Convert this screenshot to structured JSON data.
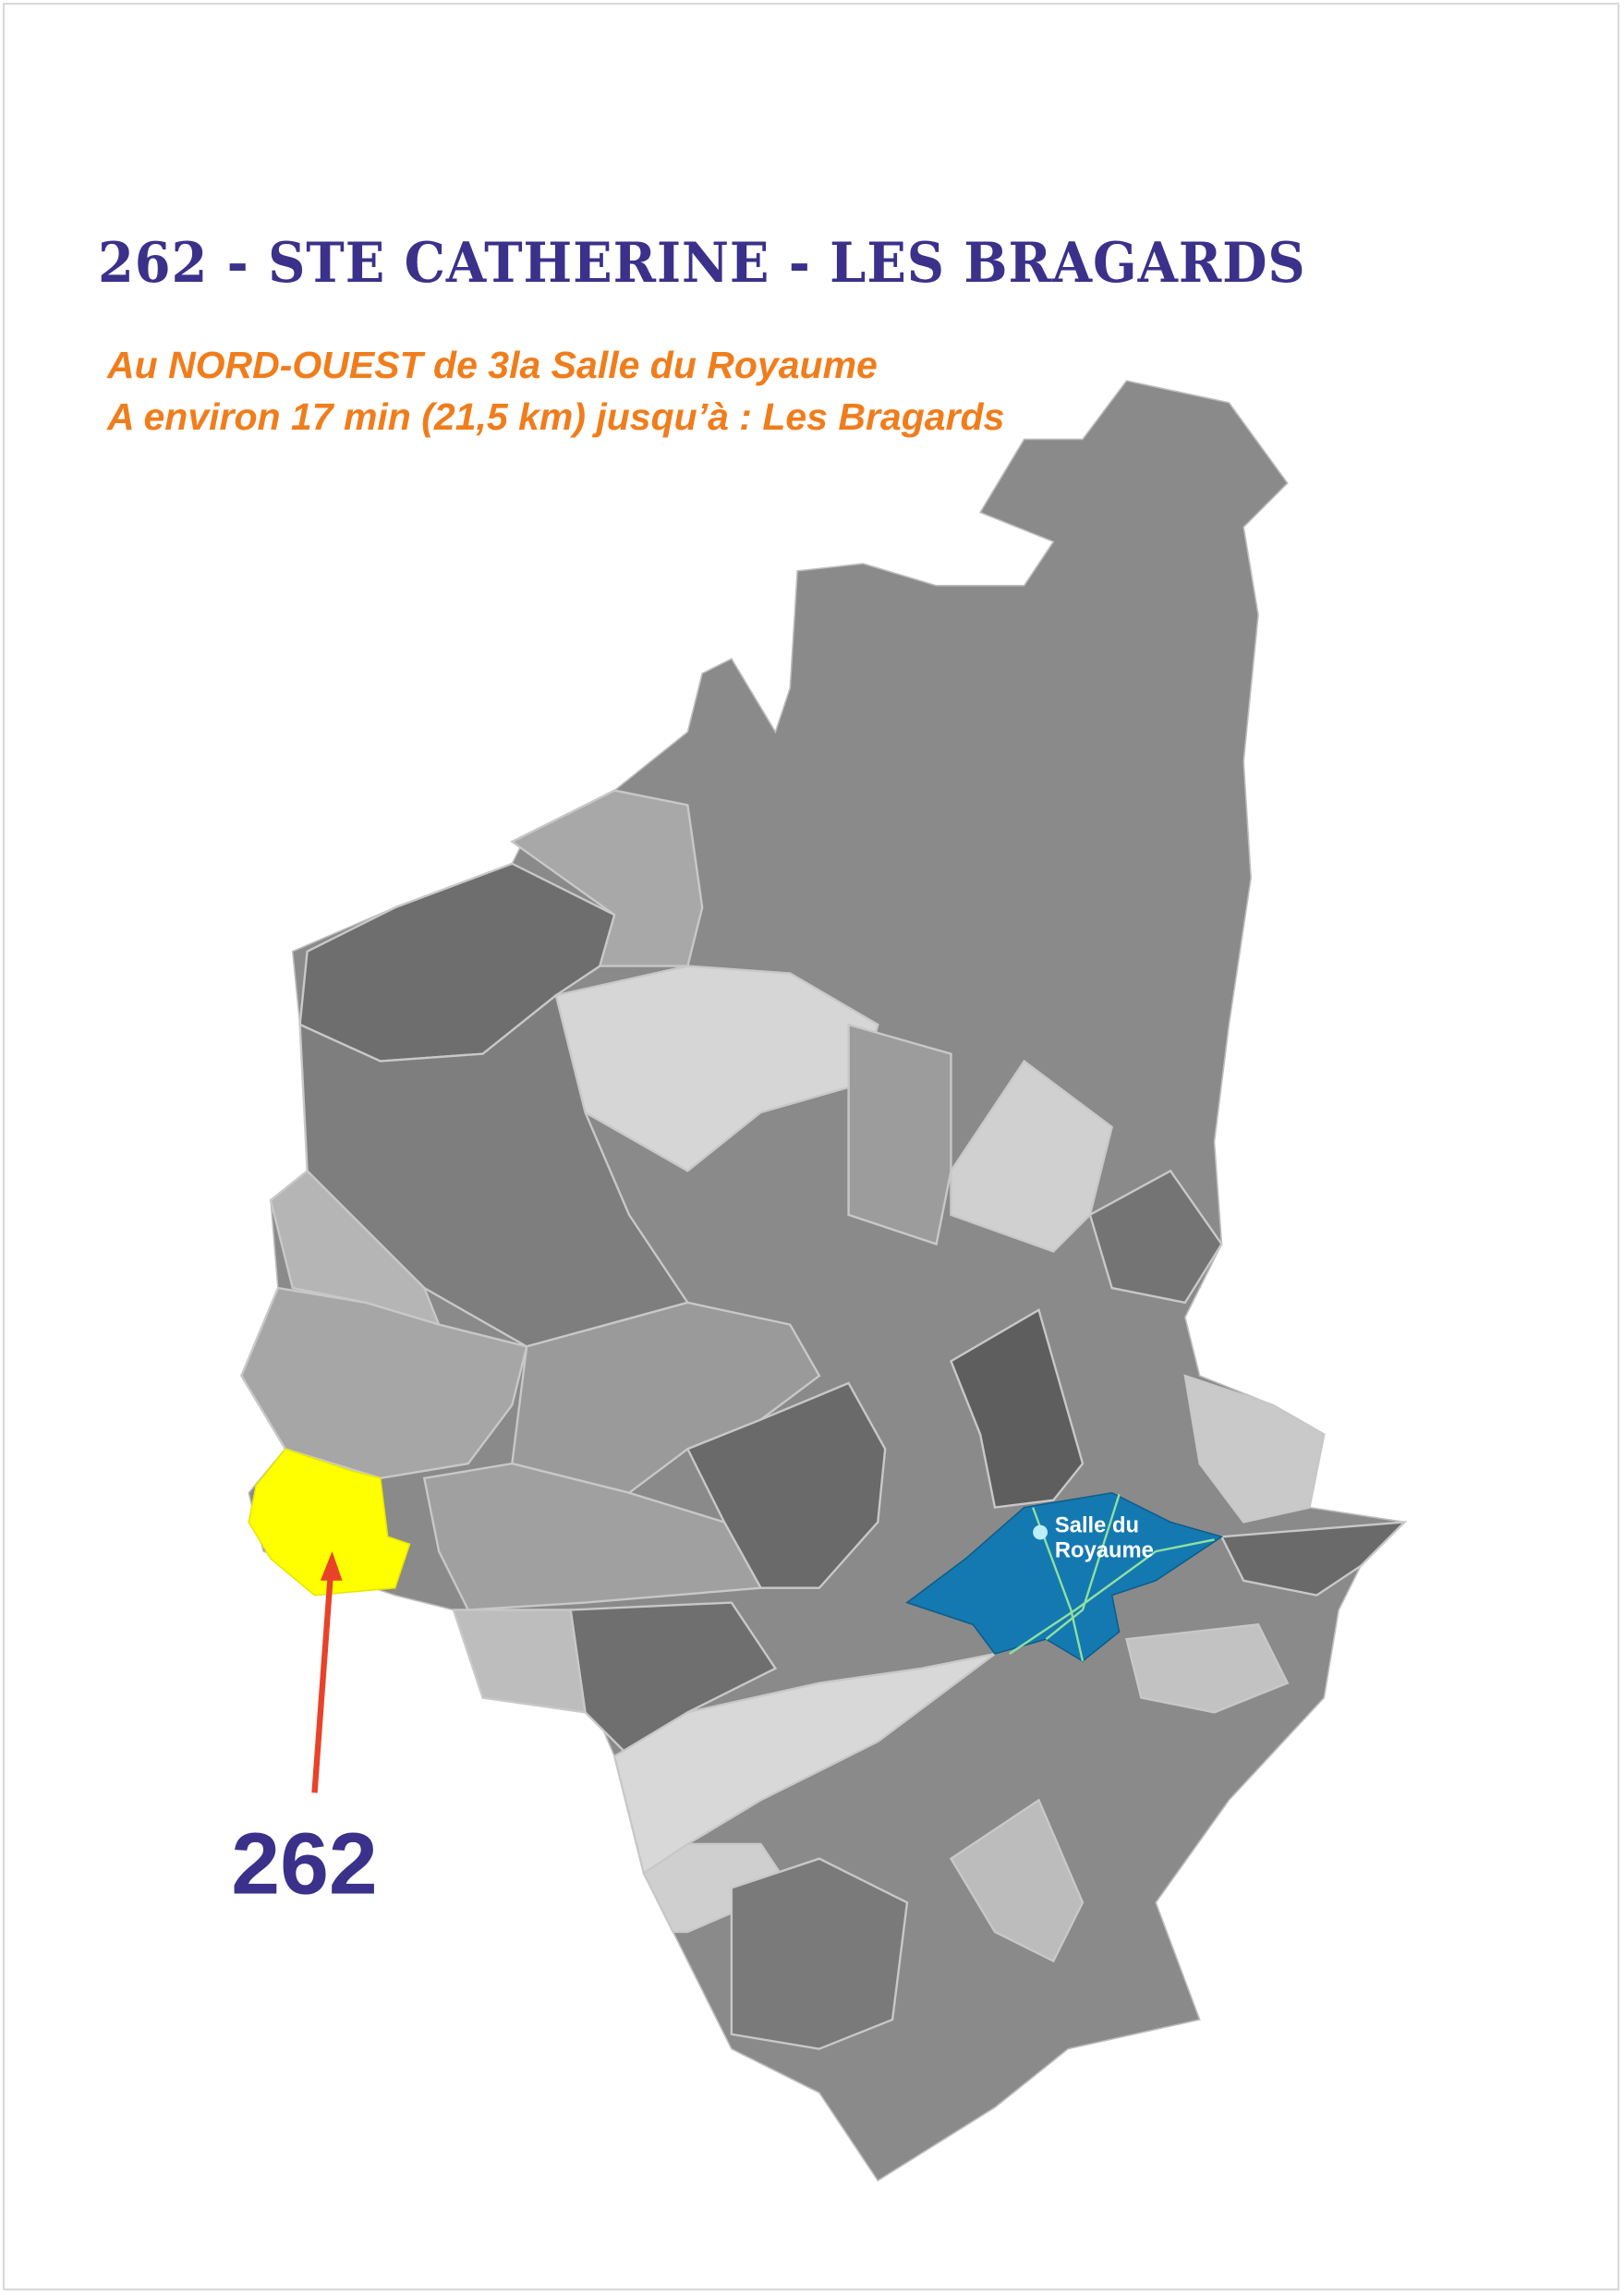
{
  "title": "262 - STE CATHERINE - LES BRAGARDS",
  "subtitle_line1": "Au NORD-OUEST de 3la Salle du Royaume",
  "subtitle_line2": "A environ 17 min (21,5 km)  jusqu’à : Les Bragards",
  "map": {
    "territory_number": "262",
    "hall_label_line1": "Salle du",
    "hall_label_line2": "Royaume",
    "colors": {
      "territory": "#ffff00",
      "hall_area": "#1479b0",
      "arrow": "#e8432a",
      "text_blue": "#3b318a",
      "text_orange": "#f07d1c"
    }
  }
}
